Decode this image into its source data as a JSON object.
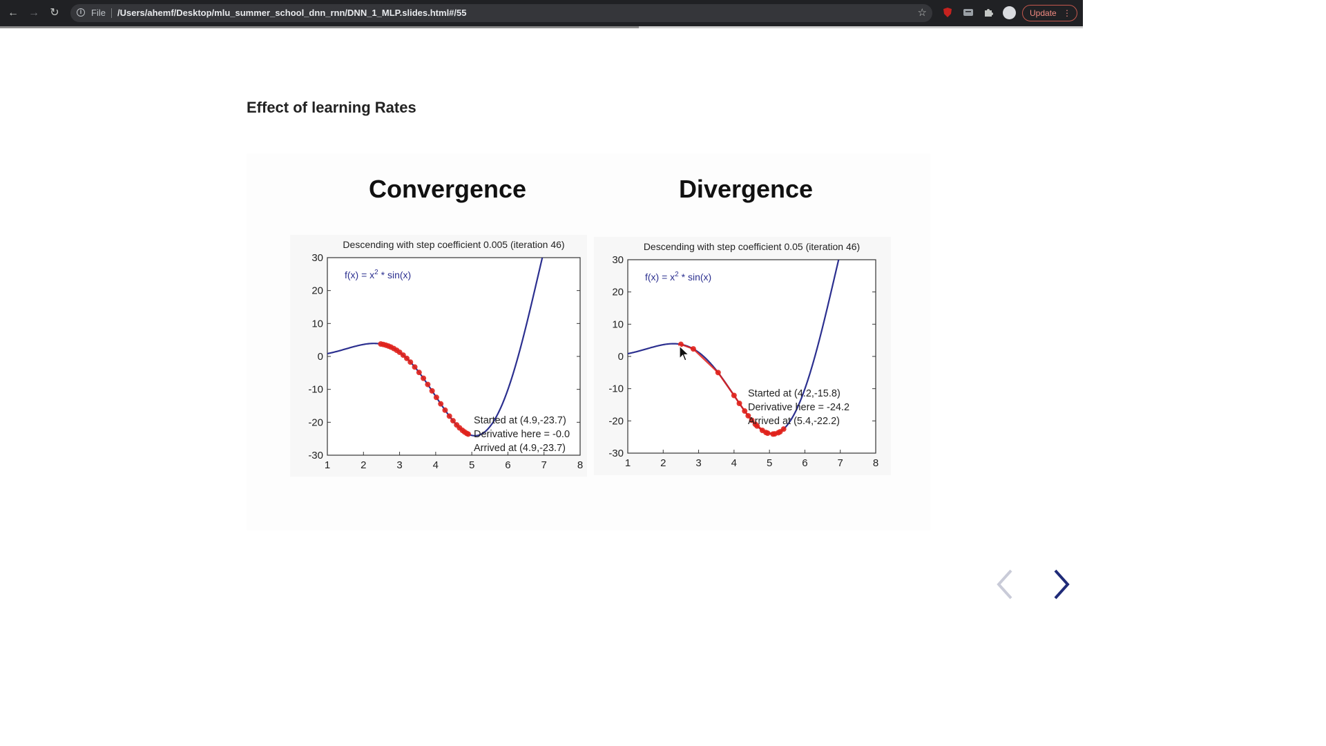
{
  "browser": {
    "file_label": "File",
    "url": "/Users/ahemf/Desktop/mlu_summer_school_dnn_rnn/DNN_1_MLP.slides.html#/55",
    "update_label": "Update",
    "slide_progress": 0.59
  },
  "slide": {
    "title": "Effect of learning Rates",
    "headings": [
      "Convergence",
      "Divergence"
    ]
  },
  "chart_data": [
    {
      "type": "line",
      "title": "Descending with step coefficient 0.005 (iteration 46)",
      "function_label": "f(x) = x",
      "function_exp": "2",
      "function_rest": " * sin(x)",
      "xlim": [
        1,
        8
      ],
      "ylim": [
        -30,
        30
      ],
      "xticks": [
        1,
        2,
        3,
        4,
        5,
        6,
        7,
        8
      ],
      "yticks": [
        -30,
        -20,
        -10,
        0,
        10,
        20,
        30
      ],
      "curve_color": "#2b2f8f",
      "point_color": "#e0211b",
      "points_x": [
        2.48,
        2.55,
        2.62,
        2.69,
        2.76,
        2.84,
        2.92,
        3.0,
        3.1,
        3.2,
        3.3,
        3.42,
        3.54,
        3.66,
        3.78,
        3.9,
        4.02,
        4.14,
        4.26,
        4.38,
        4.48,
        4.58,
        4.66,
        4.74,
        4.8,
        4.86,
        4.9
      ],
      "annotations": [
        "Started at (4.9,-23.7)",
        "Derivative here = -0.0",
        "Arrived at (4.9,-23.7)"
      ]
    },
    {
      "type": "line",
      "title": "Descending with step coefficient 0.05 (iteration 46)",
      "function_label": "f(x) = x",
      "function_exp": "2",
      "function_rest": " * sin(x)",
      "xlim": [
        1,
        8
      ],
      "ylim": [
        -30,
        30
      ],
      "xticks": [
        1,
        2,
        3,
        4,
        5,
        6,
        7,
        8
      ],
      "yticks": [
        -30,
        -20,
        -10,
        0,
        10,
        20,
        30
      ],
      "curve_color": "#2b2f8f",
      "point_color": "#e0211b",
      "points_x": [
        2.5,
        2.85,
        3.55,
        4.0,
        4.15,
        4.3,
        4.5,
        4.65,
        4.8,
        4.95,
        5.1,
        5.25,
        5.4,
        5.3,
        5.15,
        4.9,
        4.6,
        4.4
      ],
      "annotations": [
        "Started at (4.2,-15.8)",
        "Derivative here = -24.2",
        "Arrived at (5.4,-22.2)"
      ]
    }
  ]
}
